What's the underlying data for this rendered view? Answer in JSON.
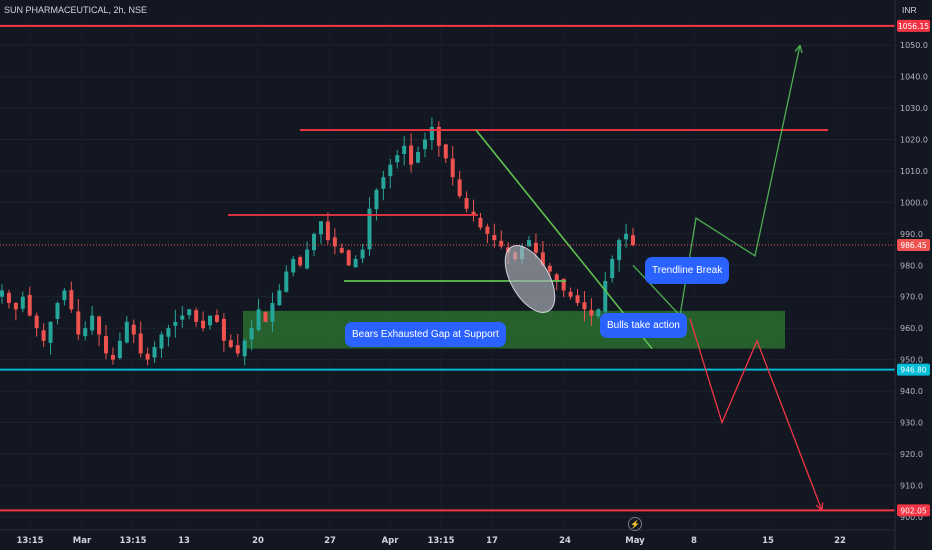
{
  "header": {
    "symbol_line": "SUN PHARMACEUTICAL, 2h, NSE",
    "currency": "INR"
  },
  "colors": {
    "background": "#131722",
    "up": "#26a69a",
    "down": "#ef5350",
    "resistance": "#f23645",
    "support": "#22ab94",
    "zone": "#2e7d32",
    "annotation": "#2962ff",
    "projection_up": "#4caf50",
    "projection_down": "#f23645"
  },
  "chart_data": {
    "type": "candlestick",
    "title": "SUN PHARMACEUTICAL, 2h, NSE",
    "ylim": [
      899,
      1058
    ],
    "y_ticks": [
      900,
      910,
      920,
      930,
      940,
      950,
      960,
      970,
      980,
      990,
      1000,
      1010,
      1020,
      1030,
      1040,
      1050
    ],
    "x_tick_labels": [
      "13:15",
      "Mar",
      "13:15",
      "13",
      "20",
      "27",
      "Apr",
      "13:15",
      "17",
      "24",
      "May",
      "8",
      "15",
      "22"
    ],
    "price_labels": {
      "top_resistance": "1056.15",
      "current": "986.45",
      "support": "946.80",
      "bottom_support": "902.05"
    },
    "levels": {
      "top_resistance": 1056.15,
      "current": 986.45,
      "support": 946.8,
      "bottom_support": 902.05,
      "upper_resistance_segment": 1023,
      "mid_resistance_segment": 996,
      "green_support_segment": 975
    },
    "support_zone": {
      "low": 953.5,
      "high": 965.5
    },
    "close_path": [
      972,
      968,
      966,
      970,
      964,
      960,
      956,
      962,
      968,
      972,
      966,
      958,
      960,
      964,
      958,
      952,
      950,
      956,
      962,
      958,
      952,
      950,
      954,
      958,
      960,
      962,
      964,
      966,
      962,
      960,
      964,
      962,
      956,
      954,
      952,
      956,
      960,
      966,
      962,
      968,
      972,
      978,
      982,
      980,
      985,
      990,
      994,
      988,
      986,
      984,
      980,
      982,
      985,
      998,
      1004,
      1008,
      1012,
      1015,
      1018,
      1012,
      1016,
      1020,
      1024,
      1018,
      1014,
      1008,
      1002,
      998,
      996,
      992,
      990,
      988,
      986,
      984,
      982,
      986,
      988,
      984,
      980,
      978,
      975,
      972,
      970,
      968,
      966,
      964,
      966,
      975,
      982,
      988,
      990,
      986.45
    ],
    "annotations": [
      "Bears Exhausted Gap at Support",
      "Bulls take action",
      "Trendline Break"
    ],
    "projection_up": [
      [
        633,
        980
      ],
      [
        680,
        964
      ],
      [
        696,
        995
      ],
      [
        755,
        983
      ],
      [
        800,
        1050
      ]
    ],
    "projection_down": [
      [
        690,
        963
      ],
      [
        722,
        930
      ],
      [
        757,
        956
      ],
      [
        822,
        902
      ]
    ]
  }
}
